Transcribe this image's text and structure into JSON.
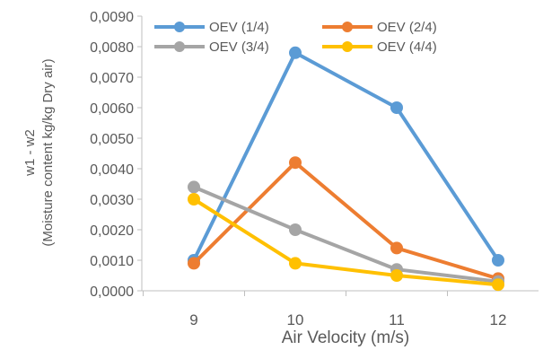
{
  "chart_data": {
    "type": "line",
    "title": "",
    "xlabel": "Air Velocity (m/s)",
    "ylabel_lines": [
      "w1 - w2",
      "(Moisture content kg/kg Dry air)"
    ],
    "categories": [
      "9",
      "10",
      "11",
      "12"
    ],
    "ylim": [
      0,
      0.009
    ],
    "y_ticks": [
      0,
      0.001,
      0.002,
      0.003,
      0.004,
      0.005,
      0.006,
      0.007,
      0.008,
      0.009
    ],
    "y_tick_labels": [
      "0,0000",
      "0,0010",
      "0,0020",
      "0,0030",
      "0,0040",
      "0,0050",
      "0,0060",
      "0,0070",
      "0,0080",
      "0,0090"
    ],
    "grid": false,
    "legend_position": "top",
    "series": [
      {
        "name": "OEV (1/4)",
        "color": "#5B9BD5",
        "values": [
          0.001,
          0.0078,
          0.006,
          0.001
        ]
      },
      {
        "name": "OEV (2/4)",
        "color": "#ED7D31",
        "values": [
          0.0009,
          0.0042,
          0.0014,
          0.0004
        ]
      },
      {
        "name": "OEV (3/4)",
        "color": "#A5A5A5",
        "values": [
          0.0034,
          0.002,
          0.0007,
          0.0003
        ]
      },
      {
        "name": "OEV (4/4)",
        "color": "#FFC000",
        "values": [
          0.003,
          0.0009,
          0.0005,
          0.0002
        ]
      }
    ]
  }
}
